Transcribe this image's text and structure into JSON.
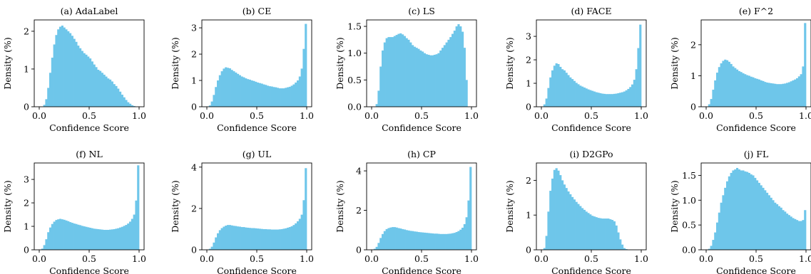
{
  "figure": {
    "bar_color": "#6ec6ea",
    "axis_color": "#000000"
  },
  "chart_data": [
    {
      "type": "bar",
      "title": "(a) AdaLabel",
      "xlabel": "Confidence Score",
      "ylabel": "Density (%)",
      "xlim": [
        -0.05,
        1.05
      ],
      "ylim": [
        0,
        2.3
      ],
      "xticks": [
        0.0,
        0.5,
        1.0
      ],
      "xticklabels": [
        "0.0",
        "0.5",
        "1.0"
      ],
      "yticks": [
        0,
        1,
        2
      ],
      "yticklabels": [
        "0",
        "1",
        "2"
      ],
      "bins": {
        "start": 0.0,
        "width": 0.02
      },
      "values": [
        0.0,
        0.0,
        0.05,
        0.2,
        0.5,
        0.9,
        1.3,
        1.65,
        1.9,
        2.05,
        2.12,
        2.15,
        2.1,
        2.05,
        2.0,
        1.95,
        1.88,
        1.8,
        1.72,
        1.62,
        1.55,
        1.48,
        1.42,
        1.38,
        1.33,
        1.28,
        1.2,
        1.12,
        1.05,
        0.98,
        0.95,
        0.9,
        0.85,
        0.8,
        0.75,
        0.72,
        0.67,
        0.6,
        0.55,
        0.48,
        0.4,
        0.32,
        0.25,
        0.18,
        0.12,
        0.08,
        0.04,
        0.02,
        0.0,
        0.0
      ]
    },
    {
      "type": "bar",
      "title": "(b) CE",
      "xlabel": "Confidence Score",
      "ylabel": "Density (%)",
      "xlim": [
        -0.05,
        1.05
      ],
      "ylim": [
        0,
        3.3
      ],
      "xticks": [
        0.0,
        0.5,
        1.0
      ],
      "xticklabels": [
        "0.0",
        "0.5",
        "1.0"
      ],
      "yticks": [
        0,
        1,
        2,
        3
      ],
      "yticklabels": [
        "0",
        "1",
        "2",
        "3"
      ],
      "bins": {
        "start": 0.0,
        "width": 0.02
      },
      "values": [
        0.0,
        0.05,
        0.2,
        0.45,
        0.75,
        1.0,
        1.2,
        1.35,
        1.45,
        1.5,
        1.48,
        1.46,
        1.4,
        1.35,
        1.3,
        1.25,
        1.2,
        1.15,
        1.12,
        1.08,
        1.05,
        1.03,
        1.0,
        0.98,
        0.95,
        0.92,
        0.9,
        0.88,
        0.85,
        0.83,
        0.8,
        0.78,
        0.77,
        0.75,
        0.74,
        0.72,
        0.7,
        0.7,
        0.7,
        0.72,
        0.74,
        0.76,
        0.8,
        0.85,
        0.92,
        1.0,
        1.15,
        1.45,
        2.2,
        3.15
      ]
    },
    {
      "type": "bar",
      "title": "(c) LS",
      "xlabel": "Confidence Score",
      "ylabel": "Density (%)",
      "xlim": [
        -0.05,
        1.05
      ],
      "ylim": [
        0,
        1.62
      ],
      "xticks": [
        0.0,
        0.5,
        1.0
      ],
      "xticklabels": [
        "0.0",
        "0.5",
        "1.0"
      ],
      "yticks": [
        0.0,
        0.5,
        1.0,
        1.5
      ],
      "yticklabels": [
        "0.0",
        "0.5",
        "1.0",
        "1.5"
      ],
      "bins": {
        "start": 0.0,
        "width": 0.02
      },
      "values": [
        0.0,
        0.0,
        0.05,
        0.3,
        0.75,
        1.05,
        1.2,
        1.28,
        1.3,
        1.3,
        1.3,
        1.32,
        1.34,
        1.36,
        1.37,
        1.35,
        1.32,
        1.28,
        1.25,
        1.2,
        1.15,
        1.12,
        1.1,
        1.08,
        1.05,
        1.03,
        1.0,
        0.98,
        0.97,
        0.96,
        0.96,
        0.97,
        0.98,
        1.0,
        1.05,
        1.1,
        1.15,
        1.2,
        1.25,
        1.3,
        1.36,
        1.42,
        1.5,
        1.54,
        1.5,
        1.4,
        1.1,
        0.5,
        0.0,
        0.0
      ]
    },
    {
      "type": "bar",
      "title": "(d) FACE",
      "xlabel": "Confidence Score",
      "ylabel": "Density (%)",
      "xlim": [
        -0.05,
        1.05
      ],
      "ylim": [
        0,
        3.7
      ],
      "xticks": [
        0.0,
        0.5,
        1.0
      ],
      "xticklabels": [
        "0.0",
        "0.5",
        "1.0"
      ],
      "yticks": [
        0,
        1,
        2,
        3
      ],
      "yticklabels": [
        "0",
        "1",
        "2",
        "3"
      ],
      "bins": {
        "start": 0.0,
        "width": 0.02
      },
      "values": [
        0.0,
        0.1,
        0.35,
        0.8,
        1.25,
        1.55,
        1.75,
        1.85,
        1.82,
        1.7,
        1.6,
        1.55,
        1.45,
        1.35,
        1.25,
        1.18,
        1.1,
        1.02,
        0.96,
        0.9,
        0.86,
        0.82,
        0.78,
        0.74,
        0.71,
        0.68,
        0.65,
        0.62,
        0.6,
        0.58,
        0.56,
        0.55,
        0.54,
        0.54,
        0.54,
        0.54,
        0.55,
        0.56,
        0.58,
        0.6,
        0.62,
        0.65,
        0.7,
        0.76,
        0.84,
        0.95,
        1.15,
        1.6,
        2.5,
        3.5
      ]
    },
    {
      "type": "bar",
      "title": "(e) F^2",
      "xlabel": "Confidence Score",
      "ylabel": "Density (%)",
      "xlim": [
        -0.05,
        1.05
      ],
      "ylim": [
        0,
        2.8
      ],
      "xticks": [
        0.0,
        0.5,
        1.0
      ],
      "xticklabels": [
        "0.0",
        "0.5",
        "1.0"
      ],
      "yticks": [
        0,
        1,
        2
      ],
      "yticklabels": [
        "0",
        "1",
        "2"
      ],
      "bins": {
        "start": 0.0,
        "width": 0.02
      },
      "values": [
        0.0,
        0.08,
        0.25,
        0.55,
        0.85,
        1.1,
        1.28,
        1.4,
        1.48,
        1.52,
        1.5,
        1.45,
        1.38,
        1.3,
        1.25,
        1.2,
        1.15,
        1.12,
        1.08,
        1.05,
        1.02,
        1.0,
        0.97,
        0.95,
        0.92,
        0.9,
        0.88,
        0.85,
        0.83,
        0.8,
        0.78,
        0.77,
        0.76,
        0.75,
        0.74,
        0.73,
        0.73,
        0.73,
        0.74,
        0.75,
        0.77,
        0.79,
        0.82,
        0.85,
        0.88,
        0.92,
        0.98,
        1.05,
        1.3,
        2.7
      ]
    },
    {
      "type": "bar",
      "title": "(f) NL",
      "xlabel": "Confidence Score",
      "ylabel": "Density (%)",
      "xlim": [
        -0.05,
        1.05
      ],
      "ylim": [
        0,
        3.7
      ],
      "xticks": [
        0.0,
        0.5,
        1.0
      ],
      "xticklabels": [
        "0.0",
        "0.5",
        "1.0"
      ],
      "yticks": [
        0,
        1,
        2,
        3
      ],
      "yticklabels": [
        "0",
        "1",
        "2",
        "3"
      ],
      "bins": {
        "start": 0.0,
        "width": 0.02
      },
      "values": [
        0.0,
        0.05,
        0.2,
        0.45,
        0.75,
        0.95,
        1.1,
        1.2,
        1.27,
        1.3,
        1.32,
        1.3,
        1.28,
        1.25,
        1.22,
        1.18,
        1.15,
        1.12,
        1.1,
        1.07,
        1.05,
        1.02,
        1.0,
        0.98,
        0.96,
        0.94,
        0.92,
        0.9,
        0.89,
        0.88,
        0.87,
        0.86,
        0.85,
        0.85,
        0.85,
        0.86,
        0.87,
        0.88,
        0.9,
        0.92,
        0.95,
        0.98,
        1.02,
        1.06,
        1.12,
        1.2,
        1.32,
        1.5,
        2.1,
        3.6
      ]
    },
    {
      "type": "bar",
      "title": "(g) UL",
      "xlabel": "Confidence Score",
      "ylabel": "Density (%)",
      "xlim": [
        -0.05,
        1.05
      ],
      "ylim": [
        0,
        4.2
      ],
      "xticks": [
        0.0,
        0.5,
        1.0
      ],
      "xticklabels": [
        "0.0",
        "0.5",
        "1.0"
      ],
      "yticks": [
        0,
        2,
        4
      ],
      "yticklabels": [
        "0",
        "2",
        "4"
      ],
      "bins": {
        "start": 0.0,
        "width": 0.02
      },
      "values": [
        0.0,
        0.05,
        0.15,
        0.35,
        0.6,
        0.8,
        0.95,
        1.05,
        1.12,
        1.17,
        1.2,
        1.2,
        1.18,
        1.16,
        1.15,
        1.13,
        1.12,
        1.1,
        1.1,
        1.08,
        1.07,
        1.06,
        1.05,
        1.05,
        1.04,
        1.03,
        1.02,
        1.01,
        1.0,
        1.0,
        0.99,
        0.99,
        0.98,
        0.98,
        0.98,
        0.98,
        0.99,
        1.0,
        1.02,
        1.04,
        1.07,
        1.1,
        1.14,
        1.2,
        1.28,
        1.38,
        1.5,
        1.7,
        2.4,
        3.95
      ]
    },
    {
      "type": "bar",
      "title": "(h) CP",
      "xlabel": "Confidence Score",
      "ylabel": "Density (%)",
      "xlim": [
        -0.05,
        1.05
      ],
      "ylim": [
        0,
        4.4
      ],
      "xticks": [
        0.0,
        0.5,
        1.0
      ],
      "xticklabels": [
        "0.0",
        "0.5",
        "1.0"
      ],
      "yticks": [
        0,
        2,
        4
      ],
      "yticklabels": [
        "0",
        "2",
        "4"
      ],
      "bins": {
        "start": 0.0,
        "width": 0.02
      },
      "values": [
        0.0,
        0.05,
        0.15,
        0.35,
        0.6,
        0.8,
        0.95,
        1.05,
        1.1,
        1.13,
        1.15,
        1.15,
        1.13,
        1.1,
        1.08,
        1.05,
        1.03,
        1.0,
        0.98,
        0.96,
        0.95,
        0.93,
        0.92,
        0.9,
        0.89,
        0.88,
        0.87,
        0.86,
        0.85,
        0.84,
        0.83,
        0.82,
        0.82,
        0.81,
        0.8,
        0.8,
        0.8,
        0.8,
        0.81,
        0.82,
        0.84,
        0.86,
        0.9,
        0.95,
        1.02,
        1.12,
        1.3,
        1.65,
        2.5,
        4.2
      ]
    },
    {
      "type": "bar",
      "title": "(i) D2GPo",
      "xlabel": "Confidence Score",
      "ylabel": "Density (%)",
      "xlim": [
        -0.05,
        1.05
      ],
      "ylim": [
        0,
        2.5
      ],
      "xticks": [
        0.0,
        0.5,
        1.0
      ],
      "xticklabels": [
        "0.0",
        "0.5",
        "1.0"
      ],
      "yticks": [
        0,
        1,
        2
      ],
      "yticklabels": [
        "0",
        "1",
        "2"
      ],
      "bins": {
        "start": 0.0,
        "width": 0.02
      },
      "values": [
        0.0,
        0.05,
        0.4,
        1.1,
        1.7,
        2.05,
        2.3,
        2.35,
        2.28,
        2.15,
        2.0,
        1.88,
        1.78,
        1.68,
        1.6,
        1.52,
        1.45,
        1.38,
        1.32,
        1.26,
        1.2,
        1.15,
        1.1,
        1.06,
        1.02,
        0.98,
        0.96,
        0.94,
        0.92,
        0.91,
        0.9,
        0.9,
        0.9,
        0.9,
        0.88,
        0.86,
        0.82,
        0.7,
        0.5,
        0.3,
        0.15,
        0.05,
        0.02,
        0.0,
        0.0,
        0.0,
        0.0,
        0.0,
        0.0,
        0.0
      ]
    },
    {
      "type": "bar",
      "title": "(j) FL",
      "xlabel": "Confidence Score",
      "ylabel": "Density (%)",
      "xlim": [
        -0.05,
        1.05
      ],
      "ylim": [
        0,
        1.75
      ],
      "xticks": [
        0.0,
        0.5,
        1.0
      ],
      "xticklabels": [
        "0.0",
        "0.5",
        "1.0"
      ],
      "yticks": [
        0.0,
        0.5,
        1.0,
        1.5
      ],
      "yticklabels": [
        "0.0",
        "0.5",
        "1.0",
        "1.5"
      ],
      "bins": {
        "start": 0.0,
        "width": 0.02
      },
      "values": [
        0.0,
        0.02,
        0.08,
        0.2,
        0.35,
        0.55,
        0.75,
        0.95,
        1.1,
        1.25,
        1.38,
        1.48,
        1.55,
        1.6,
        1.62,
        1.65,
        1.62,
        1.6,
        1.6,
        1.58,
        1.57,
        1.55,
        1.52,
        1.5,
        1.45,
        1.4,
        1.35,
        1.3,
        1.25,
        1.2,
        1.15,
        1.1,
        1.05,
        1.0,
        0.95,
        0.92,
        0.88,
        0.85,
        0.8,
        0.77,
        0.73,
        0.7,
        0.67,
        0.64,
        0.62,
        0.6,
        0.58,
        0.58,
        0.6,
        0.8
      ]
    }
  ]
}
